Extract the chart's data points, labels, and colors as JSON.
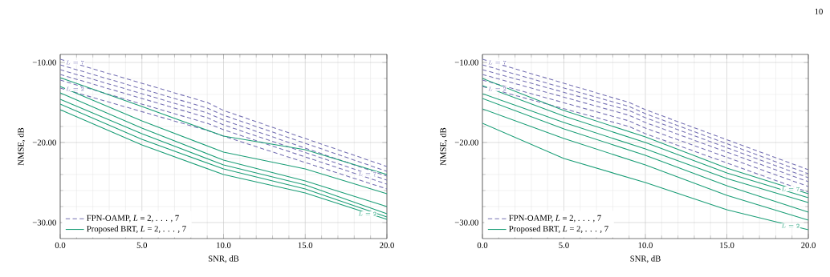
{
  "chart_data": [
    {
      "type": "line",
      "xlabel": "SNR, dB",
      "ylabel": "NMSE, dB",
      "xlim": [
        0,
        20
      ],
      "ylim": [
        -32,
        -9
      ],
      "xticks": [
        {
          "value": 0,
          "label": "0.0"
        },
        {
          "value": 5,
          "label": "5.0"
        },
        {
          "value": 10,
          "label": "10.0"
        },
        {
          "value": 15,
          "label": "15.0"
        },
        {
          "value": 20,
          "label": "20.0"
        }
      ],
      "yticks": [
        {
          "value": -30,
          "label": "−30.00"
        },
        {
          "value": -20,
          "label": "−20.00"
        },
        {
          "value": -10,
          "label": "−10.00"
        }
      ],
      "grid": true,
      "legend": "bottom left",
      "series": [
        {
          "name": "FPN-OAMP, *L* = 2, . . . , 7",
          "color": "#7570b3",
          "line_style": "dashed",
          "x": [
            0,
            9,
            10,
            20
          ],
          "values": [
            -13.2,
            -18.5,
            -19.2,
            -25.8
          ]
        },
        {
          "color": "#7570b3",
          "line_style": "dashed",
          "x": [
            0,
            9,
            10,
            20
          ],
          "values": [
            -12.2,
            -17.6,
            -18.4,
            -25.2
          ]
        },
        {
          "color": "#7570b3",
          "line_style": "dashed",
          "x": [
            0,
            9,
            10,
            20
          ],
          "values": [
            -11.5,
            -16.9,
            -17.8,
            -24.7
          ]
        },
        {
          "color": "#7570b3",
          "line_style": "dashed",
          "x": [
            0,
            9,
            10,
            20
          ],
          "values": [
            -10.9,
            -16.3,
            -17.2,
            -24.2
          ]
        },
        {
          "color": "#7570b3",
          "line_style": "dashed",
          "x": [
            0,
            9,
            10,
            20
          ],
          "values": [
            -10.3,
            -15.7,
            -16.6,
            -23.6
          ]
        },
        {
          "color": "#7570b3",
          "line_style": "dashed",
          "x": [
            0,
            9,
            10,
            20
          ],
          "values": [
            -9.6,
            -15.0,
            -16.0,
            -23.0
          ]
        },
        {
          "name": "Proposed BRT, *L* = 2, . . . , 7",
          "color": "#1b9e77",
          "line_style": "solid",
          "x": [
            0,
            5,
            10,
            15,
            20
          ],
          "values": [
            -15.9,
            -20.3,
            -24.0,
            -26.3,
            -29.6
          ]
        },
        {
          "color": "#1b9e77",
          "line_style": "solid",
          "x": [
            0,
            5,
            10,
            15,
            20
          ],
          "values": [
            -15.2,
            -19.6,
            -23.3,
            -25.8,
            -29.3
          ]
        },
        {
          "color": "#1b9e77",
          "line_style": "solid",
          "x": [
            0,
            5,
            10,
            15,
            20
          ],
          "values": [
            -14.6,
            -18.9,
            -22.8,
            -25.3,
            -28.9
          ]
        },
        {
          "color": "#1b9e77",
          "line_style": "solid",
          "x": [
            0,
            5,
            10,
            15,
            20
          ],
          "values": [
            -13.8,
            -18.2,
            -22.2,
            -24.8,
            -28.0
          ]
        },
        {
          "color": "#1b9e77",
          "line_style": "solid",
          "x": [
            0,
            5,
            10,
            15,
            20
          ],
          "values": [
            -13.0,
            -17.3,
            -21.2,
            -23.3,
            -26.4
          ]
        },
        {
          "color": "#1b9e77",
          "line_style": "solid",
          "x": [
            0,
            5,
            10,
            15,
            20
          ],
          "values": [
            -11.9,
            -15.5,
            -19.2,
            -20.9,
            -24.0
          ]
        }
      ],
      "annotations": [
        {
          "text": "L = 7",
          "x": 0.9,
          "y": -10.0
        },
        {
          "text": "L = 2",
          "x": 0.9,
          "y": -13.3
        },
        {
          "text": "L = 7",
          "x": 18.8,
          "y": -23.9
        },
        {
          "text": "L = 2",
          "x": 18.8,
          "y": -28.9
        }
      ]
    },
    {
      "type": "line",
      "xlabel": "SNR, dB",
      "ylabel": "NMSE, dB",
      "xlim": [
        0,
        20
      ],
      "ylim": [
        -32,
        -9
      ],
      "xticks": [
        {
          "value": 0,
          "label": "0.0"
        },
        {
          "value": 5,
          "label": "5.0"
        },
        {
          "value": 10,
          "label": "10.0"
        },
        {
          "value": 15,
          "label": "15.0"
        },
        {
          "value": 20,
          "label": "20.0"
        }
      ],
      "yticks": [
        {
          "value": -30,
          "label": "−30.00"
        },
        {
          "value": -20,
          "label": "−20.00"
        },
        {
          "value": -10,
          "label": "−10.00"
        }
      ],
      "grid": true,
      "legend": "bottom left",
      "series": [
        {
          "name": "FPN-OAMP, *L* = 2, . . . , 7",
          "color": "#7570b3",
          "line_style": "dashed",
          "x": [
            0,
            9,
            10,
            20
          ],
          "values": [
            -13.0,
            -18.0,
            -18.9,
            -26.2
          ]
        },
        {
          "color": "#7570b3",
          "line_style": "dashed",
          "x": [
            0,
            9,
            10,
            20
          ],
          "values": [
            -12.2,
            -17.3,
            -18.2,
            -25.5
          ]
        },
        {
          "color": "#7570b3",
          "line_style": "dashed",
          "x": [
            0,
            9,
            10,
            20
          ],
          "values": [
            -11.5,
            -16.6,
            -17.5,
            -24.9
          ]
        },
        {
          "color": "#7570b3",
          "line_style": "dashed",
          "x": [
            0,
            9,
            10,
            20
          ],
          "values": [
            -10.9,
            -16.0,
            -16.9,
            -24.4
          ]
        },
        {
          "color": "#7570b3",
          "line_style": "dashed",
          "x": [
            0,
            9,
            10,
            20
          ],
          "values": [
            -10.3,
            -15.5,
            -16.4,
            -23.9
          ]
        },
        {
          "color": "#7570b3",
          "line_style": "dashed",
          "x": [
            0,
            9,
            10,
            20
          ],
          "values": [
            -9.6,
            -15.0,
            -15.9,
            -23.4
          ]
        },
        {
          "name": "Proposed BRT, *L* = 2, . . . , 7",
          "color": "#1b9e77",
          "line_style": "solid",
          "x": [
            0,
            5,
            10,
            15,
            20
          ],
          "values": [
            -17.6,
            -22.0,
            -25.0,
            -28.4,
            -30.9
          ]
        },
        {
          "color": "#1b9e77",
          "line_style": "solid",
          "x": [
            0,
            5,
            10,
            15,
            20
          ],
          "values": [
            -15.8,
            -19.5,
            -22.8,
            -26.6,
            -29.7
          ]
        },
        {
          "color": "#1b9e77",
          "line_style": "solid",
          "x": [
            0,
            5,
            10,
            15,
            20
          ],
          "values": [
            -14.5,
            -18.3,
            -21.6,
            -25.4,
            -28.7
          ]
        },
        {
          "color": "#1b9e77",
          "line_style": "solid",
          "x": [
            0,
            5,
            10,
            15,
            20
          ],
          "values": [
            -13.9,
            -17.5,
            -20.8,
            -24.5,
            -27.5
          ]
        },
        {
          "color": "#1b9e77",
          "line_style": "solid",
          "x": [
            0,
            5,
            10,
            15,
            20
          ],
          "values": [
            -12.9,
            -16.7,
            -20.0,
            -23.8,
            -26.9
          ]
        },
        {
          "color": "#1b9e77",
          "line_style": "solid",
          "x": [
            0,
            5,
            10,
            15,
            20
          ],
          "values": [
            -12.0,
            -16.0,
            -19.3,
            -23.2,
            -26.4
          ]
        }
      ],
      "annotations": [
        {
          "text": "L = 7",
          "x": 0.9,
          "y": -10.0
        },
        {
          "text": "L = 2",
          "x": 0.9,
          "y": -13.3
        },
        {
          "text": "L = 7",
          "x": 18.9,
          "y": -25.8
        },
        {
          "text": "L = 2",
          "x": 18.9,
          "y": -30.4
        },
        "10"
      ]
    }
  ]
}
